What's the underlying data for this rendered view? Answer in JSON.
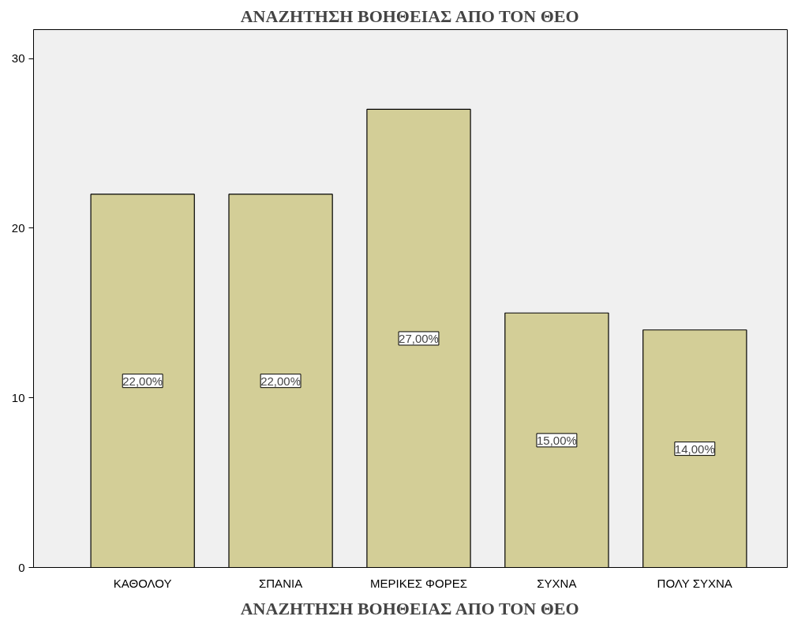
{
  "chart_data": {
    "type": "bar",
    "title": "ΑΝΑΖΗΤΗΣΗ ΒΟΗΘΕΙΑΣ ΑΠΟ ΤΟΝ ΘΕΟ",
    "xlabel": "ΑΝΑΖΗΤΗΣΗ ΒΟΗΘΕΙΑΣ ΑΠΟ ΤΟΝ ΘΕΟ",
    "categories": [
      "ΚΑΘΟΛΟΥ",
      "ΣΠΑΝΙΑ",
      "ΜΕΡΙΚΕΣ ΦΟΡΕΣ",
      "ΣΥΧΝΑ",
      "ΠΟΛΥ ΣΥΧΝΑ"
    ],
    "values": [
      22,
      22,
      27,
      15,
      14
    ],
    "value_labels": [
      "22,00%",
      "22,00%",
      "27,00%",
      "15,00%",
      "14,00%"
    ],
    "color": "#d3ce97",
    "ylim": [
      0,
      31.7
    ],
    "yticks": [
      0,
      10,
      20,
      30
    ],
    "grid": false
  }
}
